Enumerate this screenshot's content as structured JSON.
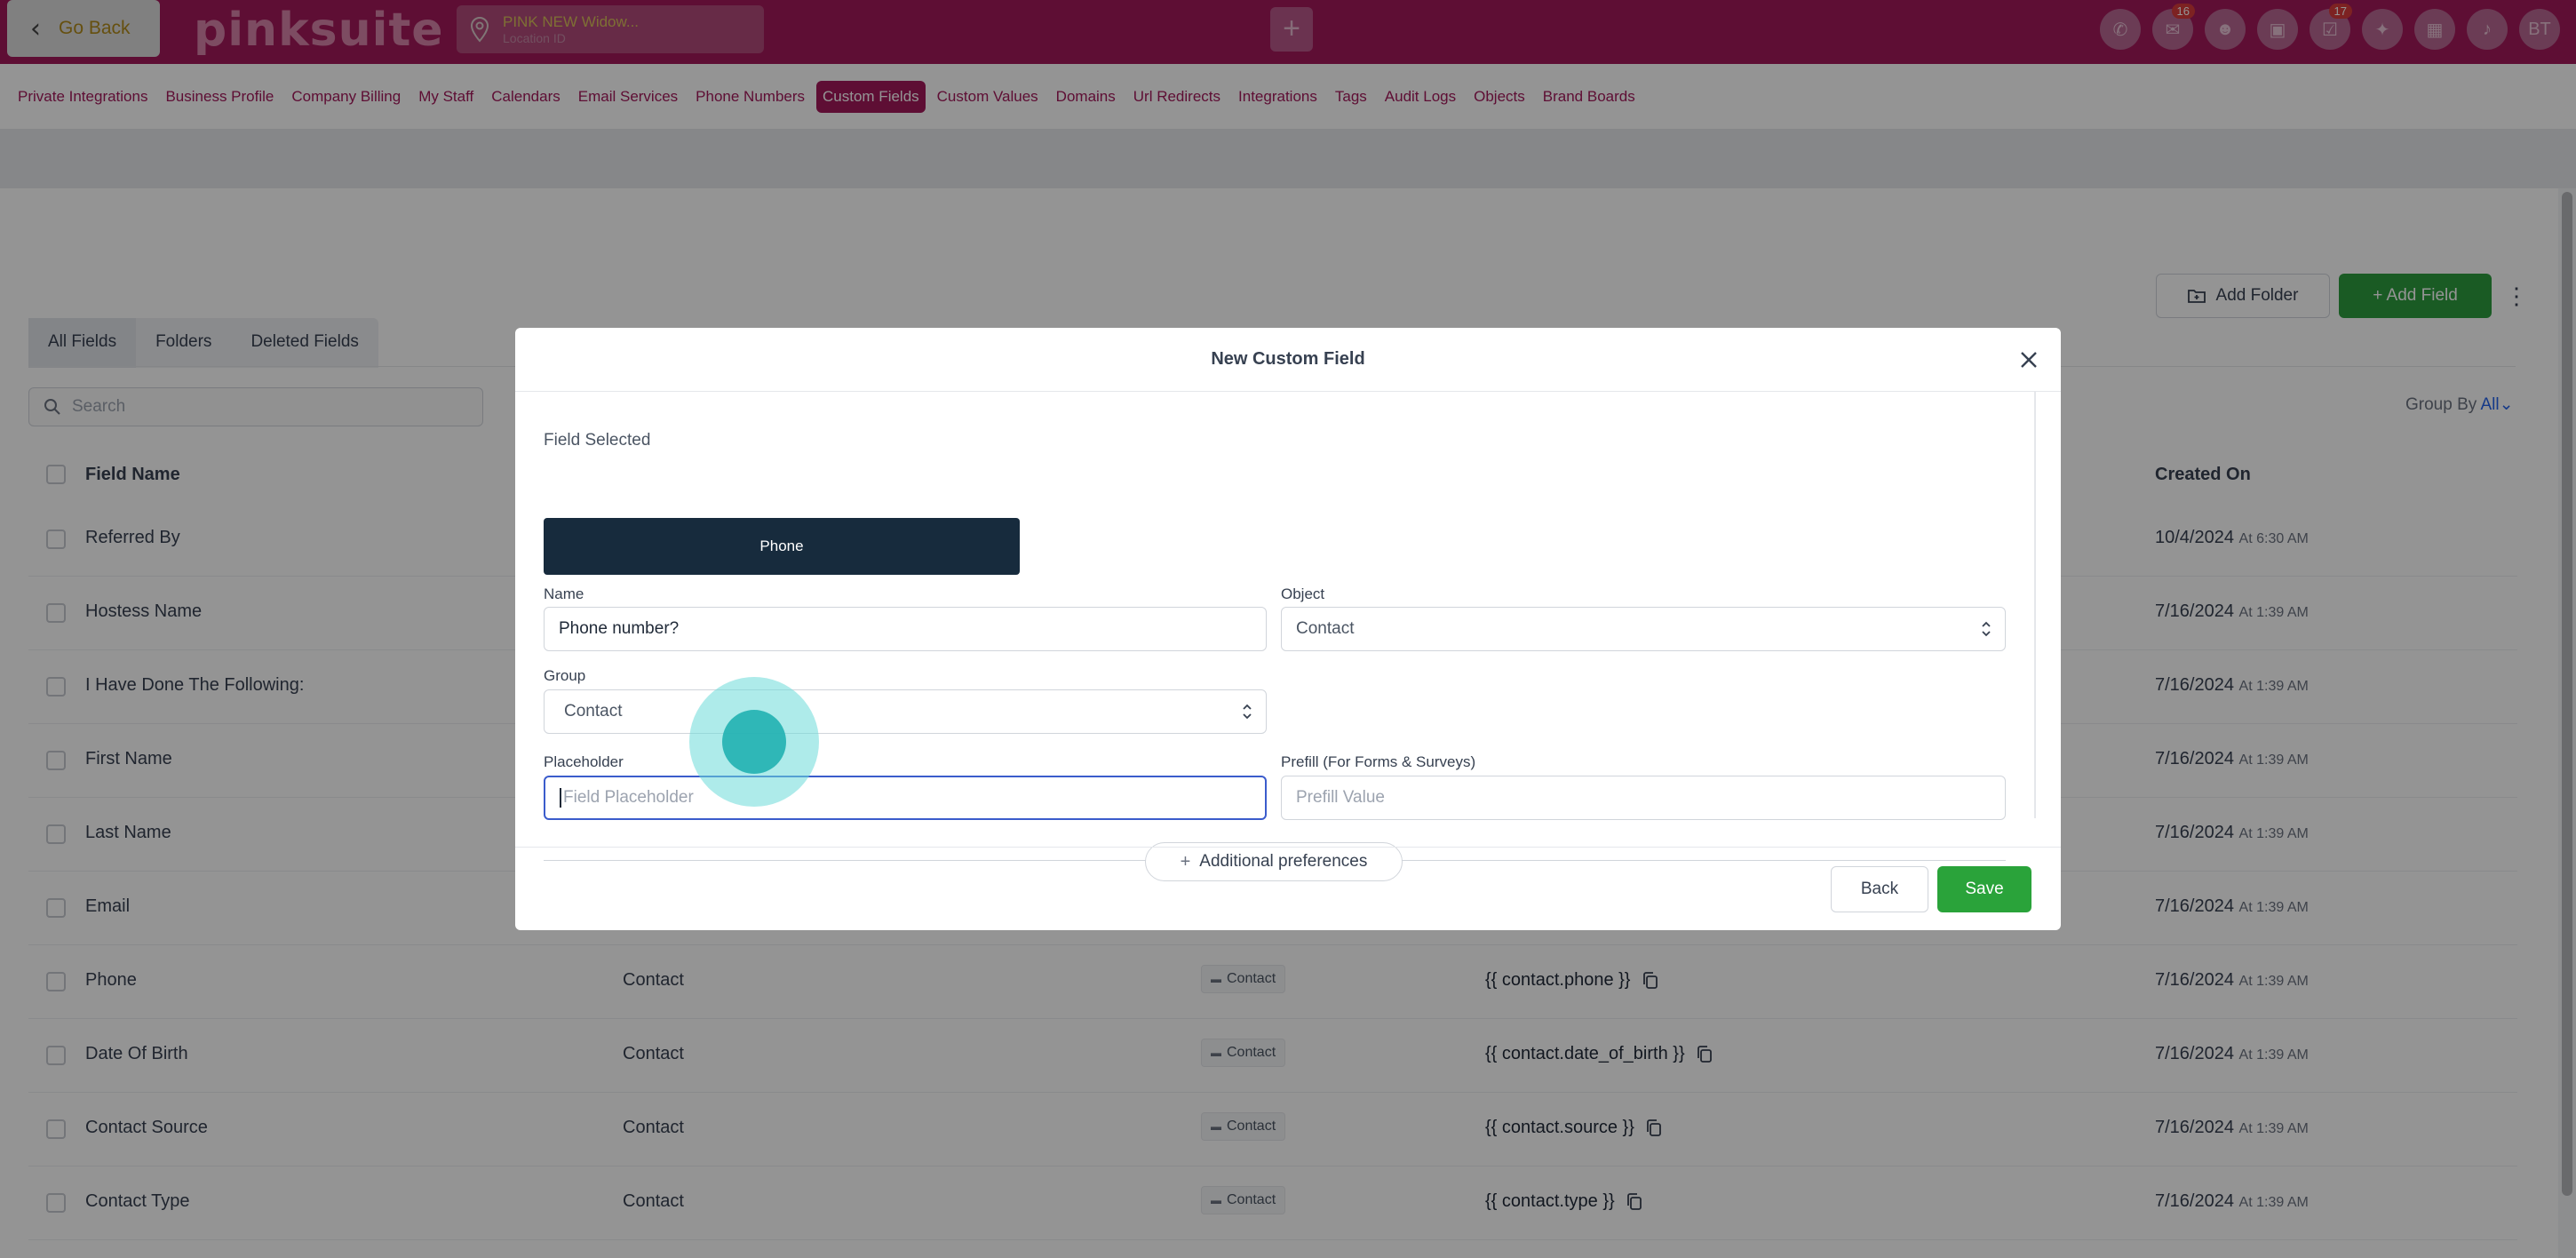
{
  "topbar": {
    "go_back": "Go Back",
    "logo": "pinksuite",
    "location_name": "PINK NEW Widow...",
    "location_sub": "Location ID",
    "plus": "+",
    "icons": [
      {
        "name": "phone-icon",
        "glyph": "✆",
        "badge": ""
      },
      {
        "name": "chat-icon",
        "glyph": "✉",
        "badge": "16"
      },
      {
        "name": "user-icon",
        "glyph": "☻",
        "badge": ""
      },
      {
        "name": "gift-icon",
        "glyph": "▣",
        "badge": ""
      },
      {
        "name": "task-icon",
        "glyph": "☑",
        "badge": "17"
      },
      {
        "name": "lightbulb-icon",
        "glyph": "✦",
        "badge": ""
      },
      {
        "name": "calendar-icon",
        "glyph": "▦",
        "badge": ""
      },
      {
        "name": "bell-icon",
        "glyph": "♪",
        "badge": ""
      }
    ],
    "avatar": "BT"
  },
  "subnav": {
    "items": [
      "Private Integrations",
      "Business Profile",
      "Company Billing",
      "My Staff",
      "Calendars",
      "Email Services",
      "Phone Numbers",
      "Custom Fields",
      "Custom Values",
      "Domains",
      "Url Redirects",
      "Integrations",
      "Tags",
      "Audit Logs",
      "Objects",
      "Brand Boards"
    ],
    "active": "Custom Fields"
  },
  "page": {
    "add_folder": "Add Folder",
    "add_field": "+ Add Field",
    "tabs": [
      "All Fields",
      "Folders",
      "Deleted Fields"
    ],
    "active_tab": "All Fields",
    "search_placeholder": "Search",
    "group_by_label": "Group By",
    "group_by_value": "All",
    "columns": {
      "field_name": "Field Name",
      "created_on": "Created On"
    },
    "rows": [
      {
        "name": "Referred By",
        "group": "",
        "folder": "",
        "key": "",
        "date": "10/4/2024",
        "time": "At 6:30 AM"
      },
      {
        "name": "Hostess Name",
        "group": "",
        "folder": "",
        "key": "",
        "date": "7/16/2024",
        "time": "At 1:39 AM"
      },
      {
        "name": "I Have Done The Following:",
        "group": "",
        "folder": "",
        "key": "",
        "date": "7/16/2024",
        "time": "At 1:39 AM"
      },
      {
        "name": "First Name",
        "group": "",
        "folder": "",
        "key": "",
        "date": "7/16/2024",
        "time": "At 1:39 AM"
      },
      {
        "name": "Last Name",
        "group": "",
        "folder": "",
        "key": "",
        "date": "7/16/2024",
        "time": "At 1:39 AM"
      },
      {
        "name": "Email",
        "group": "",
        "folder": "",
        "key": "",
        "date": "7/16/2024",
        "time": "At 1:39 AM"
      },
      {
        "name": "Phone",
        "group": "Contact",
        "folder": "Contact",
        "key": "{{ contact.phone }}",
        "date": "7/16/2024",
        "time": "At 1:39 AM"
      },
      {
        "name": "Date Of Birth",
        "group": "Contact",
        "folder": "Contact",
        "key": "{{ contact.date_of_birth }}",
        "date": "7/16/2024",
        "time": "At 1:39 AM"
      },
      {
        "name": "Contact Source",
        "group": "Contact",
        "folder": "Contact",
        "key": "{{ contact.source }}",
        "date": "7/16/2024",
        "time": "At 1:39 AM"
      },
      {
        "name": "Contact Type",
        "group": "Contact",
        "folder": "Contact",
        "key": "{{ contact.type }}",
        "date": "7/16/2024",
        "time": "At 1:39 AM"
      }
    ]
  },
  "modal": {
    "title": "New Custom Field",
    "field_selected_label": "Field Selected",
    "field_selected_value": "Phone",
    "name_label": "Name",
    "name_value": "Phone number?",
    "object_label": "Object",
    "object_value": "Contact",
    "group_label": "Group",
    "group_value": "Contact",
    "placeholder_label": "Placeholder",
    "placeholder_placeholder": "Field Placeholder",
    "prefill_label": "Prefill (For Forms & Surveys)",
    "prefill_placeholder": "Prefill Value",
    "additional_preferences": "Additional preferences",
    "back": "Back",
    "save": "Save"
  },
  "colors": {
    "brand": "#a3195b",
    "primary_green": "#2aa33a",
    "focus_blue": "#3b5ccc",
    "tile_dark": "#172b3d"
  }
}
